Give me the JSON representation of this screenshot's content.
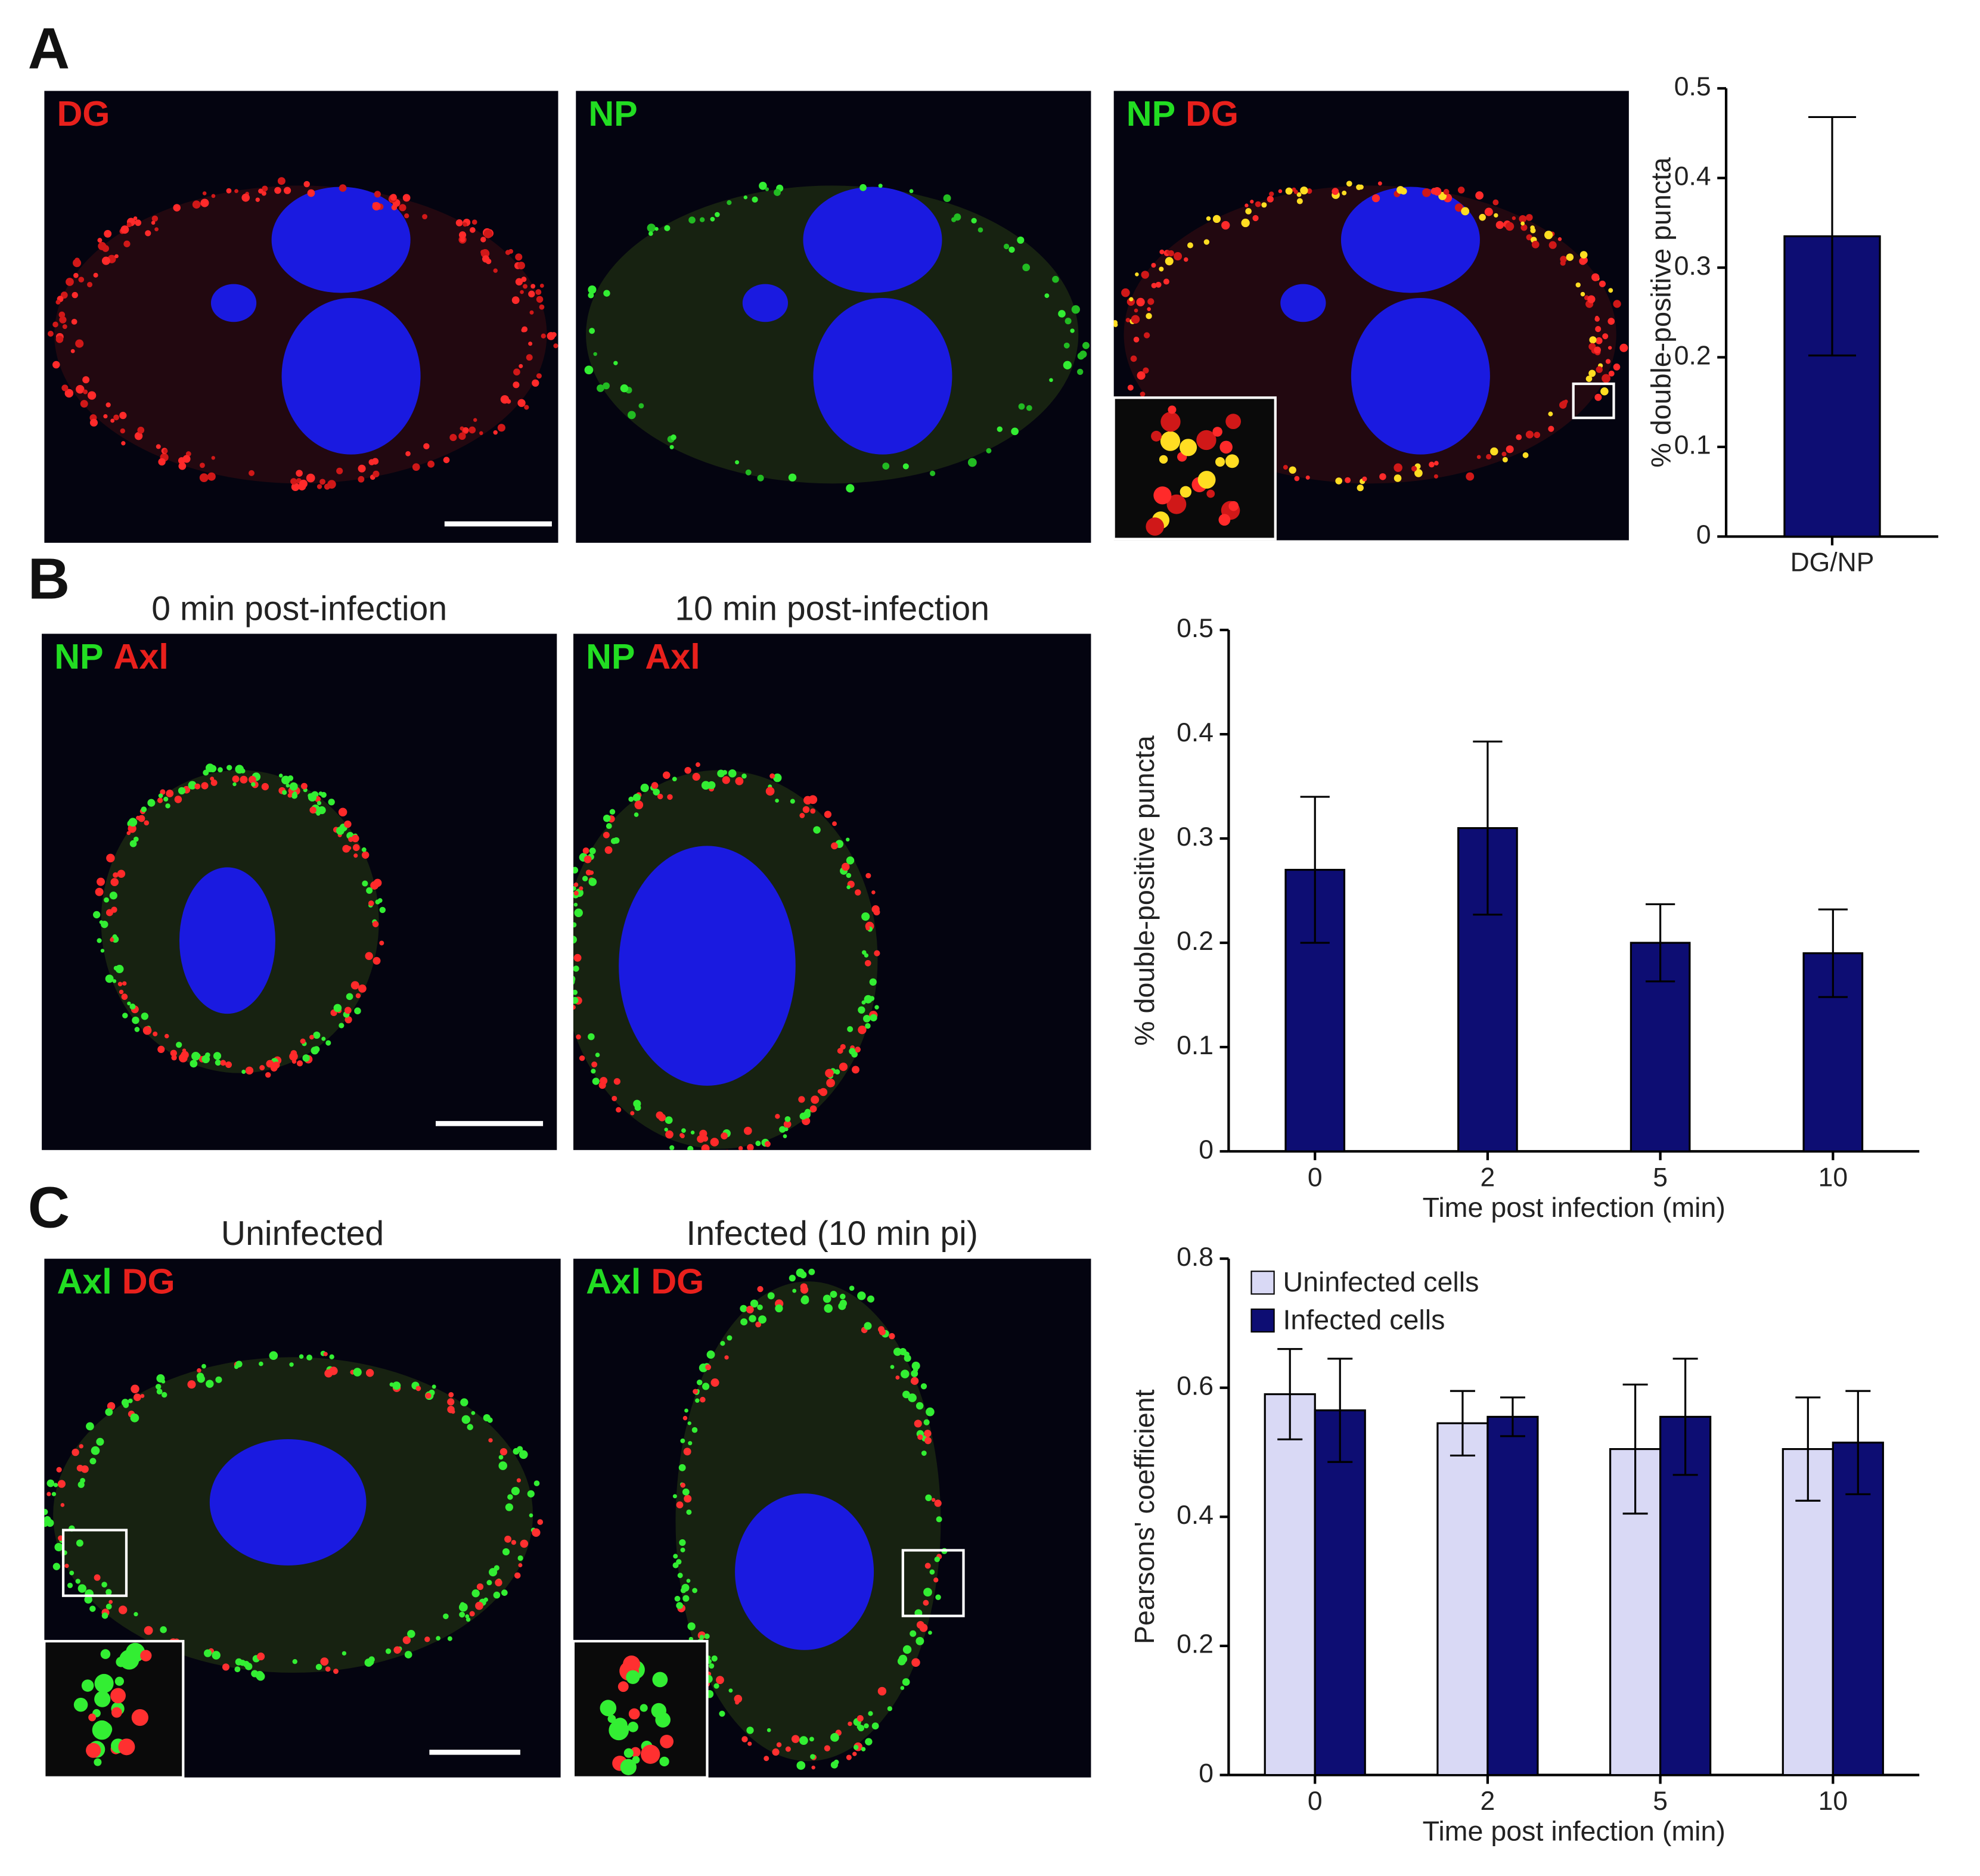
{
  "figure": {
    "panels": [
      {
        "letter": "A",
        "images": [
          {
            "channels": [
              {
                "text": "DG",
                "color": "#e8201c"
              }
            ]
          },
          {
            "channels": [
              {
                "text": "NP",
                "color": "#22dd22"
              }
            ]
          },
          {
            "channels": [
              {
                "text": "NP",
                "color": "#22dd22"
              },
              {
                "text": "DG",
                "color": "#e8201c"
              }
            ]
          }
        ]
      },
      {
        "letter": "B",
        "images": [
          {
            "title": "0 min post-infection",
            "channels": [
              {
                "text": "NP",
                "color": "#22dd22"
              },
              {
                "text": "Axl",
                "color": "#e8201c"
              }
            ]
          },
          {
            "title": "10 min post-infection",
            "channels": [
              {
                "text": "NP",
                "color": "#22dd22"
              },
              {
                "text": "Axl",
                "color": "#e8201c"
              }
            ]
          }
        ]
      },
      {
        "letter": "C",
        "images": [
          {
            "title": "Uninfected",
            "channels": [
              {
                "text": "Axl",
                "color": "#22dd22"
              },
              {
                "text": "DG",
                "color": "#e8201c"
              }
            ]
          },
          {
            "title": "Infected (10 min pi)",
            "channels": [
              {
                "text": "Axl",
                "color": "#22dd22"
              },
              {
                "text": "DG",
                "color": "#e8201c"
              }
            ]
          }
        ]
      }
    ]
  },
  "chart_data": [
    {
      "type": "bar",
      "ylabel": "% double-positive puncta",
      "categories": [
        "DG/NP"
      ],
      "values": [
        0.335
      ],
      "errors": [
        0.133
      ],
      "color": "#0d0d73",
      "ylim": [
        0,
        0.5
      ],
      "yticks": [
        0,
        0.1,
        0.2,
        0.3,
        0.4,
        0.5
      ]
    },
    {
      "type": "bar",
      "ylabel": "% double-positive puncta",
      "xlabel": "Time post infection (min)",
      "categories": [
        "0",
        "2",
        "5",
        "10"
      ],
      "values": [
        0.27,
        0.31,
        0.2,
        0.19
      ],
      "errors": [
        0.07,
        0.083,
        0.037,
        0.042
      ],
      "color": "#0d0d73",
      "ylim": [
        0,
        0.5
      ],
      "yticks": [
        0,
        0.1,
        0.2,
        0.3,
        0.4,
        0.5
      ]
    },
    {
      "type": "bar",
      "ylabel": "Pearsons' coefficient",
      "xlabel": "Time post infection (min)",
      "categories": [
        "0",
        "2",
        "5",
        "10"
      ],
      "series": [
        {
          "name": "Uninfected cells",
          "color": "#d9d9f5",
          "values": [
            0.59,
            0.545,
            0.505,
            0.505
          ],
          "errors": [
            0.07,
            0.05,
            0.1,
            0.08
          ]
        },
        {
          "name": "Infected cells",
          "color": "#0d0d73",
          "values": [
            0.565,
            0.555,
            0.555,
            0.515
          ],
          "errors": [
            0.08,
            0.03,
            0.09,
            0.08
          ]
        }
      ],
      "ylim": [
        0,
        0.8
      ],
      "yticks": [
        0,
        0.2,
        0.4,
        0.6,
        0.8
      ],
      "legend": "upper left"
    }
  ]
}
